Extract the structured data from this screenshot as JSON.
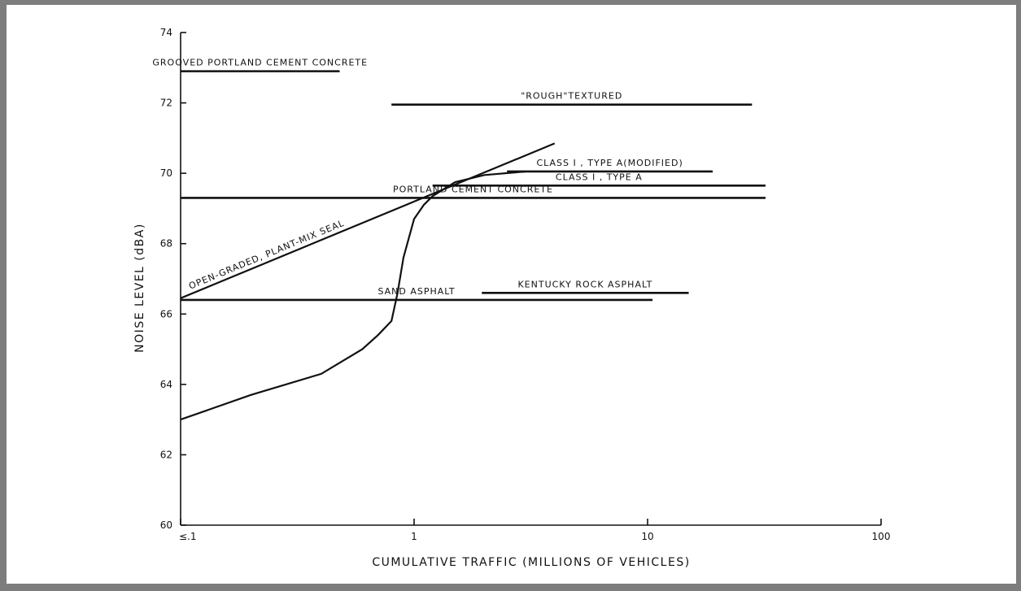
{
  "chart_data": {
    "type": "line",
    "xlabel": "CUMULATIVE TRAFFIC (MILLIONS OF VEHICLES)",
    "ylabel": "NOISE LEVEL (dBA)",
    "x_scale": "log",
    "xlim": [
      0.1,
      100
    ],
    "ylim": [
      60,
      74
    ],
    "x_ticks": [
      {
        "value": 0.1,
        "label": "≤.1"
      },
      {
        "value": 1,
        "label": "1"
      },
      {
        "value": 10,
        "label": "10"
      },
      {
        "value": 100,
        "label": "100"
      }
    ],
    "y_ticks": [
      60,
      62,
      64,
      66,
      68,
      70,
      72,
      74
    ],
    "ranges": [
      {
        "label": "GROOVED PORTLAND CEMENT CONCRETE",
        "x": [
          0.1,
          0.48
        ],
        "y": 72.9
      },
      {
        "label": "\"ROUGH\"TEXTURED",
        "x": [
          0.8,
          28
        ],
        "y": 71.95
      },
      {
        "label": "CLASS I , TYPE A(MODIFIED)",
        "x": [
          2.5,
          19
        ],
        "y": 70.05
      },
      {
        "label": "CLASS I , TYPE A",
        "x": [
          1.2,
          32
        ],
        "y": 69.65
      },
      {
        "label": "PORTLAND CEMENT CONCRETE",
        "x": [
          0.1,
          32
        ],
        "y": 69.3
      },
      {
        "label": "KENTUCKY ROCK ASPHALT",
        "x": [
          1.95,
          15
        ],
        "y": 66.6
      },
      {
        "label": "SAND ASPHALT",
        "x": [
          0.1,
          10.5
        ],
        "y": 66.4
      }
    ],
    "series": [
      {
        "name": "OPEN-GRADED, PLANT-MIX SEAL",
        "x": [
          0.1,
          4.0
        ],
        "y": [
          66.45,
          70.85
        ]
      },
      {
        "x": [
          0.1,
          0.2,
          0.4,
          0.6,
          0.7,
          0.8,
          0.85,
          0.9,
          1.0,
          1.1,
          1.2,
          1.5,
          2.0,
          3.0
        ],
        "y": [
          63.0,
          63.7,
          64.3,
          65.0,
          65.4,
          65.8,
          66.6,
          67.6,
          68.7,
          69.1,
          69.35,
          69.75,
          69.95,
          70.05
        ]
      }
    ]
  }
}
